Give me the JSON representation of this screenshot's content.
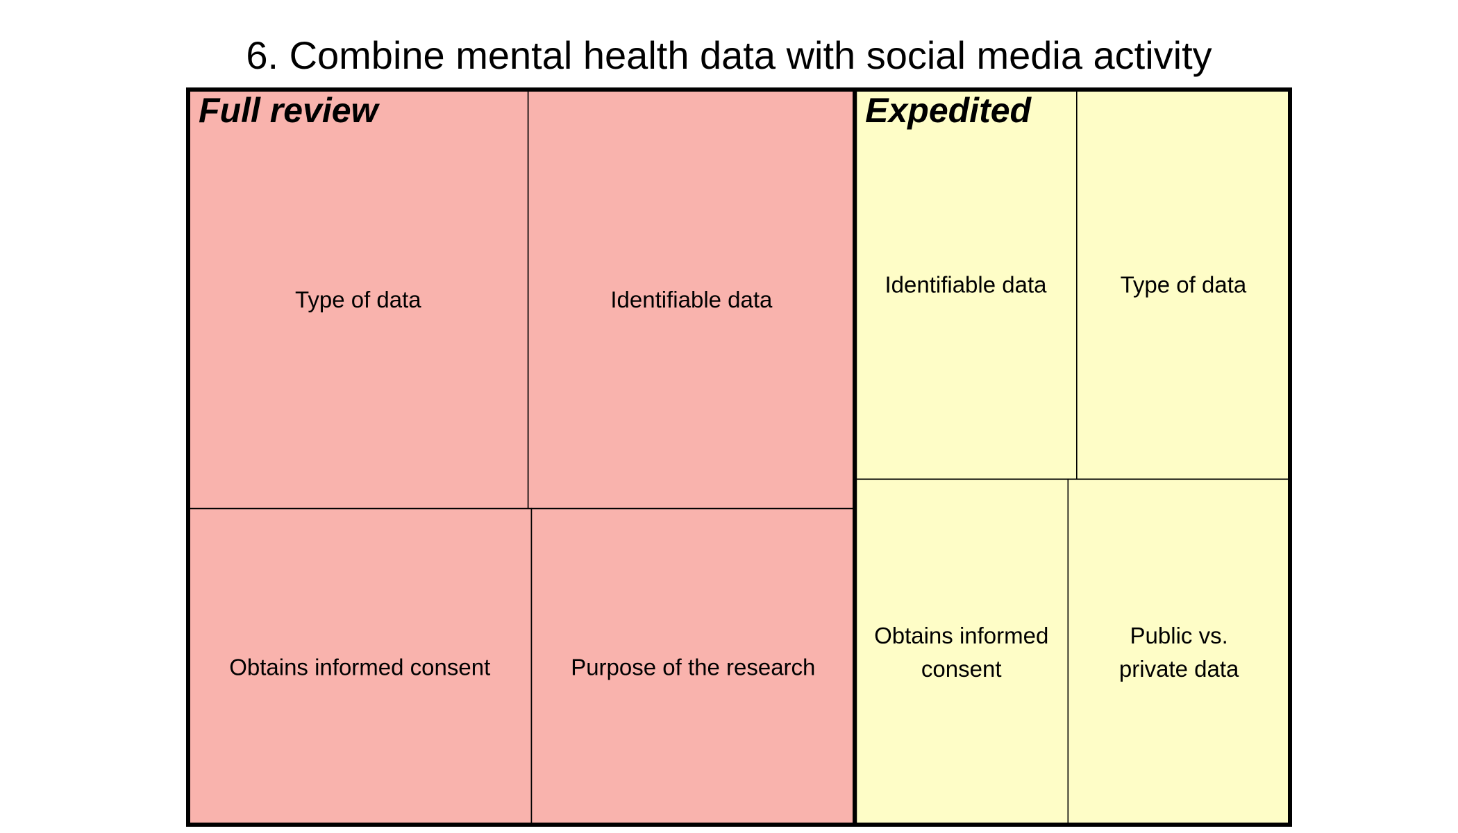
{
  "chart_data": {
    "type": "treemap",
    "title": "6. Combine mental health data with social media activity",
    "groups": [
      {
        "name": "Full review",
        "color": "#f9b3ad",
        "value": 0.605,
        "rows": [
          {
            "value": 0.57,
            "cells": [
              {
                "label": [
                  "Type of data"
                ],
                "value": 0.51
              },
              {
                "label": [
                  "Identifiable data"
                ],
                "value": 0.49
              }
            ]
          },
          {
            "value": 0.43,
            "cells": [
              {
                "label": [
                  "Obtains informed consent"
                ],
                "value": 0.515
              },
              {
                "label": [
                  "Purpose of the research"
                ],
                "value": 0.485
              }
            ]
          }
        ]
      },
      {
        "name": "Expedited",
        "color": "#fefdc7",
        "value": 0.395,
        "rows": [
          {
            "value": 0.53,
            "cells": [
              {
                "label": [
                  "Identifiable data"
                ],
                "value": 0.51
              },
              {
                "label": [
                  "Type of data"
                ],
                "value": 0.49
              }
            ]
          },
          {
            "value": 0.47,
            "cells": [
              {
                "label": [
                  "Obtains informed",
                  "consent"
                ],
                "value": 0.49
              },
              {
                "label": [
                  "Public vs.",
                  "private data"
                ],
                "value": 0.51
              }
            ]
          }
        ]
      }
    ]
  }
}
